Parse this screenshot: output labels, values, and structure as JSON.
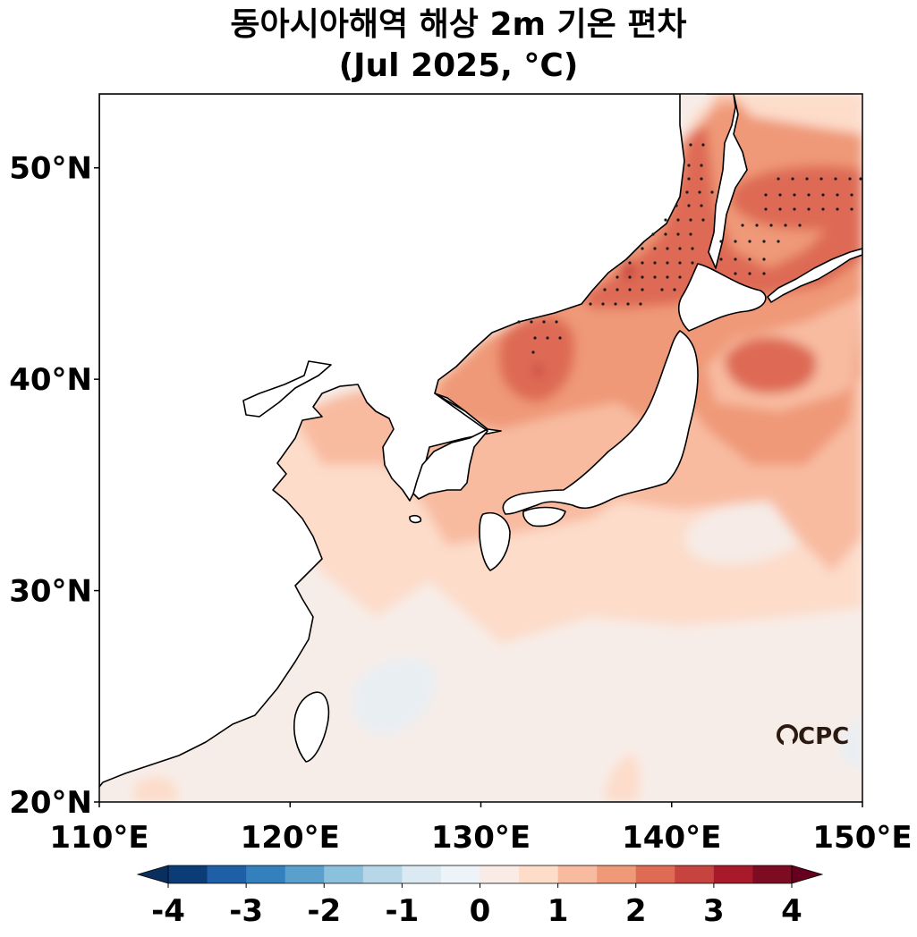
{
  "title": {
    "line1": "동아시아해역 해상 2m 기온 편차",
    "line2": "(Jul 2025, °C)"
  },
  "map": {
    "extent": {
      "lon": [
        110,
        150
      ],
      "lat": [
        20,
        53.5
      ]
    },
    "lon_ticks": [
      {
        "value": 110,
        "label": "110°E"
      },
      {
        "value": 120,
        "label": "120°E"
      },
      {
        "value": 130,
        "label": "130°E"
      },
      {
        "value": 140,
        "label": "140°E"
      },
      {
        "value": 150,
        "label": "150°E"
      }
    ],
    "lat_ticks": [
      {
        "value": 20,
        "label": "20°N"
      },
      {
        "value": 30,
        "label": "30°N"
      },
      {
        "value": 40,
        "label": "40°N"
      },
      {
        "value": 50,
        "label": "50°N"
      }
    ],
    "logo": "CPC"
  },
  "colorbar": {
    "extend": "both",
    "levels": [
      -4,
      -3.5,
      -3,
      -2.5,
      -2,
      -1.5,
      -1,
      -0.5,
      0,
      0.5,
      1,
      1.5,
      2,
      2.5,
      3,
      3.5,
      4
    ],
    "tick_labels": [
      {
        "value": -4,
        "label": "-4"
      },
      {
        "value": -3,
        "label": "-3"
      },
      {
        "value": -2,
        "label": "-2"
      },
      {
        "value": -1,
        "label": "-1"
      },
      {
        "value": 0,
        "label": "0"
      },
      {
        "value": 1,
        "label": "1"
      },
      {
        "value": 2,
        "label": "2"
      },
      {
        "value": 3,
        "label": "3"
      },
      {
        "value": 4,
        "label": "4"
      }
    ],
    "colors": [
      "#0b3c75",
      "#1f5fa7",
      "#3380bd",
      "#5aa0cc",
      "#8cc1dd",
      "#b7d7e8",
      "#dbe9f2",
      "#eef3f7",
      "#f9ebe5",
      "#fddcca",
      "#f8bba0",
      "#ef9978",
      "#de6b54",
      "#c64340",
      "#a81a2b",
      "#7d0b22"
    ],
    "under_color": "#0a2e5e",
    "over_color": "#67001f"
  },
  "colors": {
    "land": "#ffffff",
    "coast": "#000000",
    "stipple": "#1a1a1a"
  }
}
